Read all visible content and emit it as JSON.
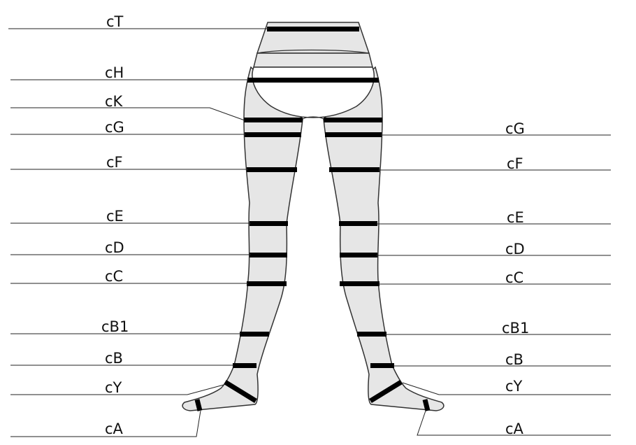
{
  "colors": {
    "fill": "#e6e6e6",
    "outline": "#333333",
    "band": "#000000",
    "line": "#222222",
    "background": "#ffffff"
  },
  "labels_left": {
    "cT": "cT",
    "cH": "cH",
    "cK": "cK",
    "cG": "cG",
    "cF": "cF",
    "cE": "cE",
    "cD": "cD",
    "cC": "cC",
    "cB1": "cB1",
    "cB": "cB",
    "cY": "cY",
    "cA": "cA"
  },
  "labels_right": {
    "cG": "cG",
    "cF": "cF",
    "cE": "cE",
    "cD": "cD",
    "cC": "cC",
    "cB1": "cB1",
    "cB": "cB",
    "cY": "cY",
    "cA": "cA"
  }
}
